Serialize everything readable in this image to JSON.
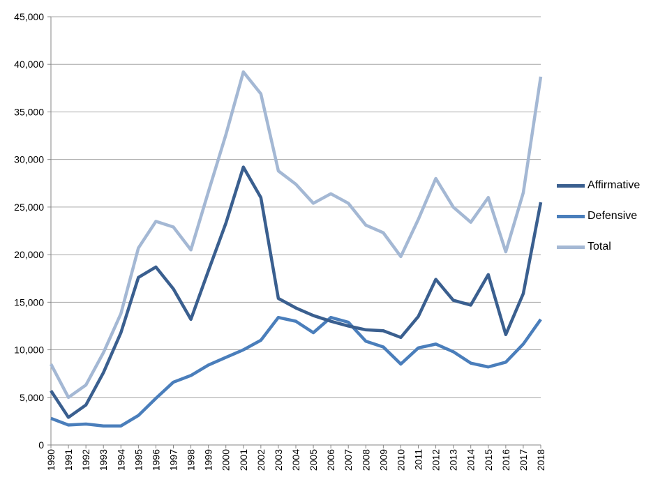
{
  "chart_data": {
    "type": "line",
    "title": "",
    "xlabel": "",
    "ylabel": "",
    "ylim": [
      0,
      45000
    ],
    "y_ticks": [
      0,
      5000,
      10000,
      15000,
      20000,
      25000,
      30000,
      35000,
      40000,
      45000
    ],
    "y_tick_labels": [
      "0",
      "5,000",
      "10,000",
      "15,000",
      "20,000",
      "25,000",
      "30,000",
      "35,000",
      "40,000",
      "45,000"
    ],
    "grid": true,
    "legend_position": "right",
    "x": [
      "1990",
      "1991",
      "1992",
      "1993",
      "1994",
      "1995",
      "1996",
      "1997",
      "1998",
      "1999",
      "2000",
      "2001",
      "2002",
      "2003",
      "2004",
      "2005",
      "2006",
      "2007",
      "2008",
      "2009",
      "2010",
      "2011",
      "2012",
      "2013",
      "2014",
      "2015",
      "2016",
      "2017",
      "2018"
    ],
    "series": [
      {
        "name": "Affirmative",
        "color": "#3a5f8f",
        "values": [
          5700,
          2900,
          4200,
          7600,
          11800,
          17600,
          18700,
          16400,
          13200,
          18300,
          23300,
          29200,
          26000,
          15400,
          14400,
          13600,
          13000,
          12500,
          12100,
          12000,
          11300,
          13500,
          17400,
          15200,
          14700,
          17900,
          11600,
          15900,
          25500
        ]
      },
      {
        "name": "Defensive",
        "color": "#4a7ebb",
        "values": [
          2800,
          2100,
          2200,
          2000,
          2000,
          3100,
          4900,
          6600,
          7300,
          8400,
          9200,
          10000,
          11000,
          13400,
          13000,
          11800,
          13400,
          12900,
          10900,
          10300,
          8500,
          10200,
          10600,
          9800,
          8600,
          8200,
          8700,
          10600,
          13200
        ]
      },
      {
        "name": "Total",
        "color": "#a4b8d4",
        "values": [
          8500,
          5000,
          6300,
          9700,
          13800,
          20700,
          23500,
          22900,
          20500,
          26600,
          32600,
          39200,
          36900,
          28800,
          27400,
          25400,
          26400,
          25400,
          23100,
          22300,
          19800,
          23700,
          28000,
          25000,
          23400,
          26000,
          20300,
          26500,
          38700
        ]
      }
    ]
  }
}
